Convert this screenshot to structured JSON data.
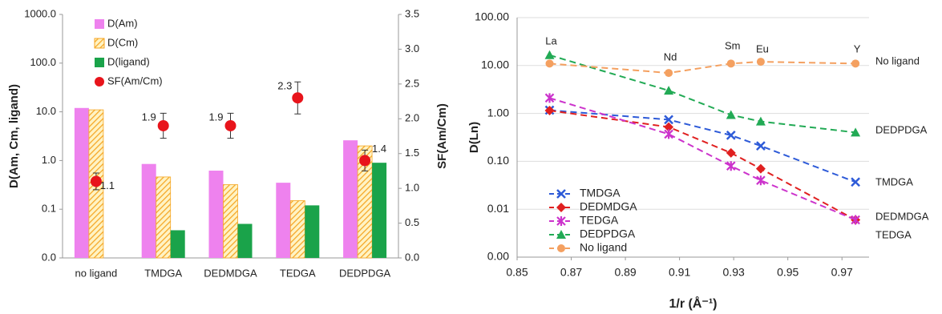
{
  "chart_data": [
    {
      "type": "bar",
      "categories": [
        "no ligand",
        "TMDGA",
        "DEDMDGA",
        "TEDGA",
        "DEDPDGA"
      ],
      "series": [
        {
          "name": "D(Am)",
          "color": "#ee82ee",
          "values": [
            12,
            0.85,
            0.62,
            0.35,
            2.6
          ]
        },
        {
          "name": "D(Cm)",
          "color": "#f5a623",
          "pattern": "hatch",
          "values": [
            11,
            0.46,
            0.32,
            0.15,
            2.0
          ]
        },
        {
          "name": "D(ligand)",
          "color": "#1aa34a",
          "values": [
            null,
            0.037,
            0.05,
            0.12,
            0.9
          ]
        },
        {
          "name": "SF(Am/Cm)",
          "color": "#e8141b",
          "type": "scatter",
          "axis": "y2",
          "values": [
            1.1,
            1.9,
            1.9,
            2.3,
            1.4
          ],
          "errors": [
            0.12,
            0.18,
            0.18,
            0.23,
            0.15
          ]
        }
      ],
      "ylabel": "D(Am, Cm, ligand)",
      "y2label": "SF(Am/Cm)",
      "log_y": true,
      "ylim": [
        0.01,
        1000
      ],
      "yticks": [
        {
          "value": 0.01,
          "label": "0.0"
        },
        0.1,
        {
          "value": 1,
          "label": "1.0"
        },
        {
          "value": 10,
          "label": "10.0"
        },
        {
          "value": 100,
          "label": "100.0"
        },
        {
          "value": 1000,
          "label": "1000.0"
        }
      ],
      "y2lim": [
        0,
        3.5
      ],
      "y2ticks": [
        {
          "value": 0,
          "label": "0.0"
        },
        0.5,
        {
          "value": 1,
          "label": "1.0"
        },
        1.5,
        {
          "value": 2,
          "label": "2.0"
        },
        2.5,
        {
          "value": 3,
          "label": "3.0"
        },
        3.5
      ],
      "legend": "upper left"
    },
    {
      "type": "line",
      "x": [
        0.862,
        0.906,
        0.929,
        0.94,
        0.975
      ],
      "point_labels": [
        "La",
        "Nd",
        "Sm",
        "Eu",
        "Y"
      ],
      "series": [
        {
          "name": "TMDGA",
          "color": "#2e5bd8",
          "marker": "x",
          "values": [
            1.17,
            0.74,
            0.35,
            0.21,
            0.037
          ]
        },
        {
          "name": "DEDMDGA",
          "color": "#e02020",
          "marker": "diamond",
          "values": [
            1.15,
            0.52,
            0.15,
            0.07,
            0.006
          ]
        },
        {
          "name": "TEDGA",
          "color": "#cc33cc",
          "marker": "asterisk",
          "values": [
            2.1,
            0.37,
            0.08,
            0.04,
            0.006
          ]
        },
        {
          "name": "DEDPDGA",
          "color": "#22aa55",
          "marker": "triangle",
          "values": [
            16.5,
            3.0,
            0.93,
            0.68,
            0.4
          ]
        },
        {
          "name": "No ligand",
          "color": "#f4a060",
          "marker": "circle",
          "values": [
            11,
            7,
            11,
            12,
            11
          ]
        }
      ],
      "end_labels": [
        "No ligand",
        "DEDPDGA",
        "TMDGA",
        "DEDMDGA",
        "TEDGA"
      ],
      "xlabel": "1/r (Å⁻¹)",
      "ylabel": "D(Ln)",
      "xlim": [
        0.85,
        0.98
      ],
      "xticks": [
        0.85,
        0.87,
        0.89,
        0.91,
        0.93,
        0.95,
        0.97
      ],
      "log_y": true,
      "ylim": [
        0.001,
        100
      ],
      "yticks": [
        {
          "value": 0.001,
          "label": "0.00"
        },
        {
          "value": 0.01,
          "label": "0.01"
        },
        {
          "value": 0.1,
          "label": "0.10"
        },
        {
          "value": 1,
          "label": "1.00"
        },
        {
          "value": 10,
          "label": "10.00"
        },
        {
          "value": 100,
          "label": "100.00"
        }
      ],
      "grid": true,
      "legend": "lower left"
    }
  ]
}
